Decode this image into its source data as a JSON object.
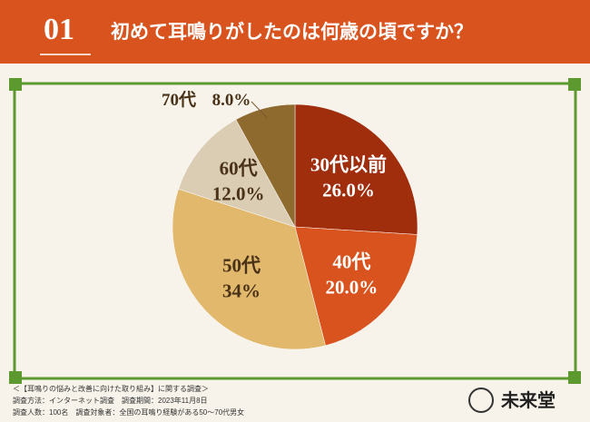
{
  "chart_data": {
    "type": "pie",
    "question_number": "01",
    "title": "初めて耳鳴りがしたのは何歳の頃ですか？",
    "categories": [
      "30代以前",
      "40代",
      "50代",
      "60代",
      "70代"
    ],
    "values": [
      26,
      20,
      34,
      12,
      8
    ],
    "value_labels": [
      "26.0%",
      "20.0%",
      "34%",
      "12.0%",
      "8.0%"
    ],
    "colors": [
      "#a02e0c",
      "#d9531e",
      "#e1b86c",
      "#dacdb3",
      "#8e6a2e"
    ],
    "notes": [
      "＜【耳鳴りの悩みと改善に向けた取り組み】に関する調査＞",
      "調査方法：インターネット調査　調査期間：2023年11月8日",
      "調査人数：100名　調査対象者：全国の耳鳴り経験がある50～70代男女"
    ],
    "brand": "未来堂"
  }
}
